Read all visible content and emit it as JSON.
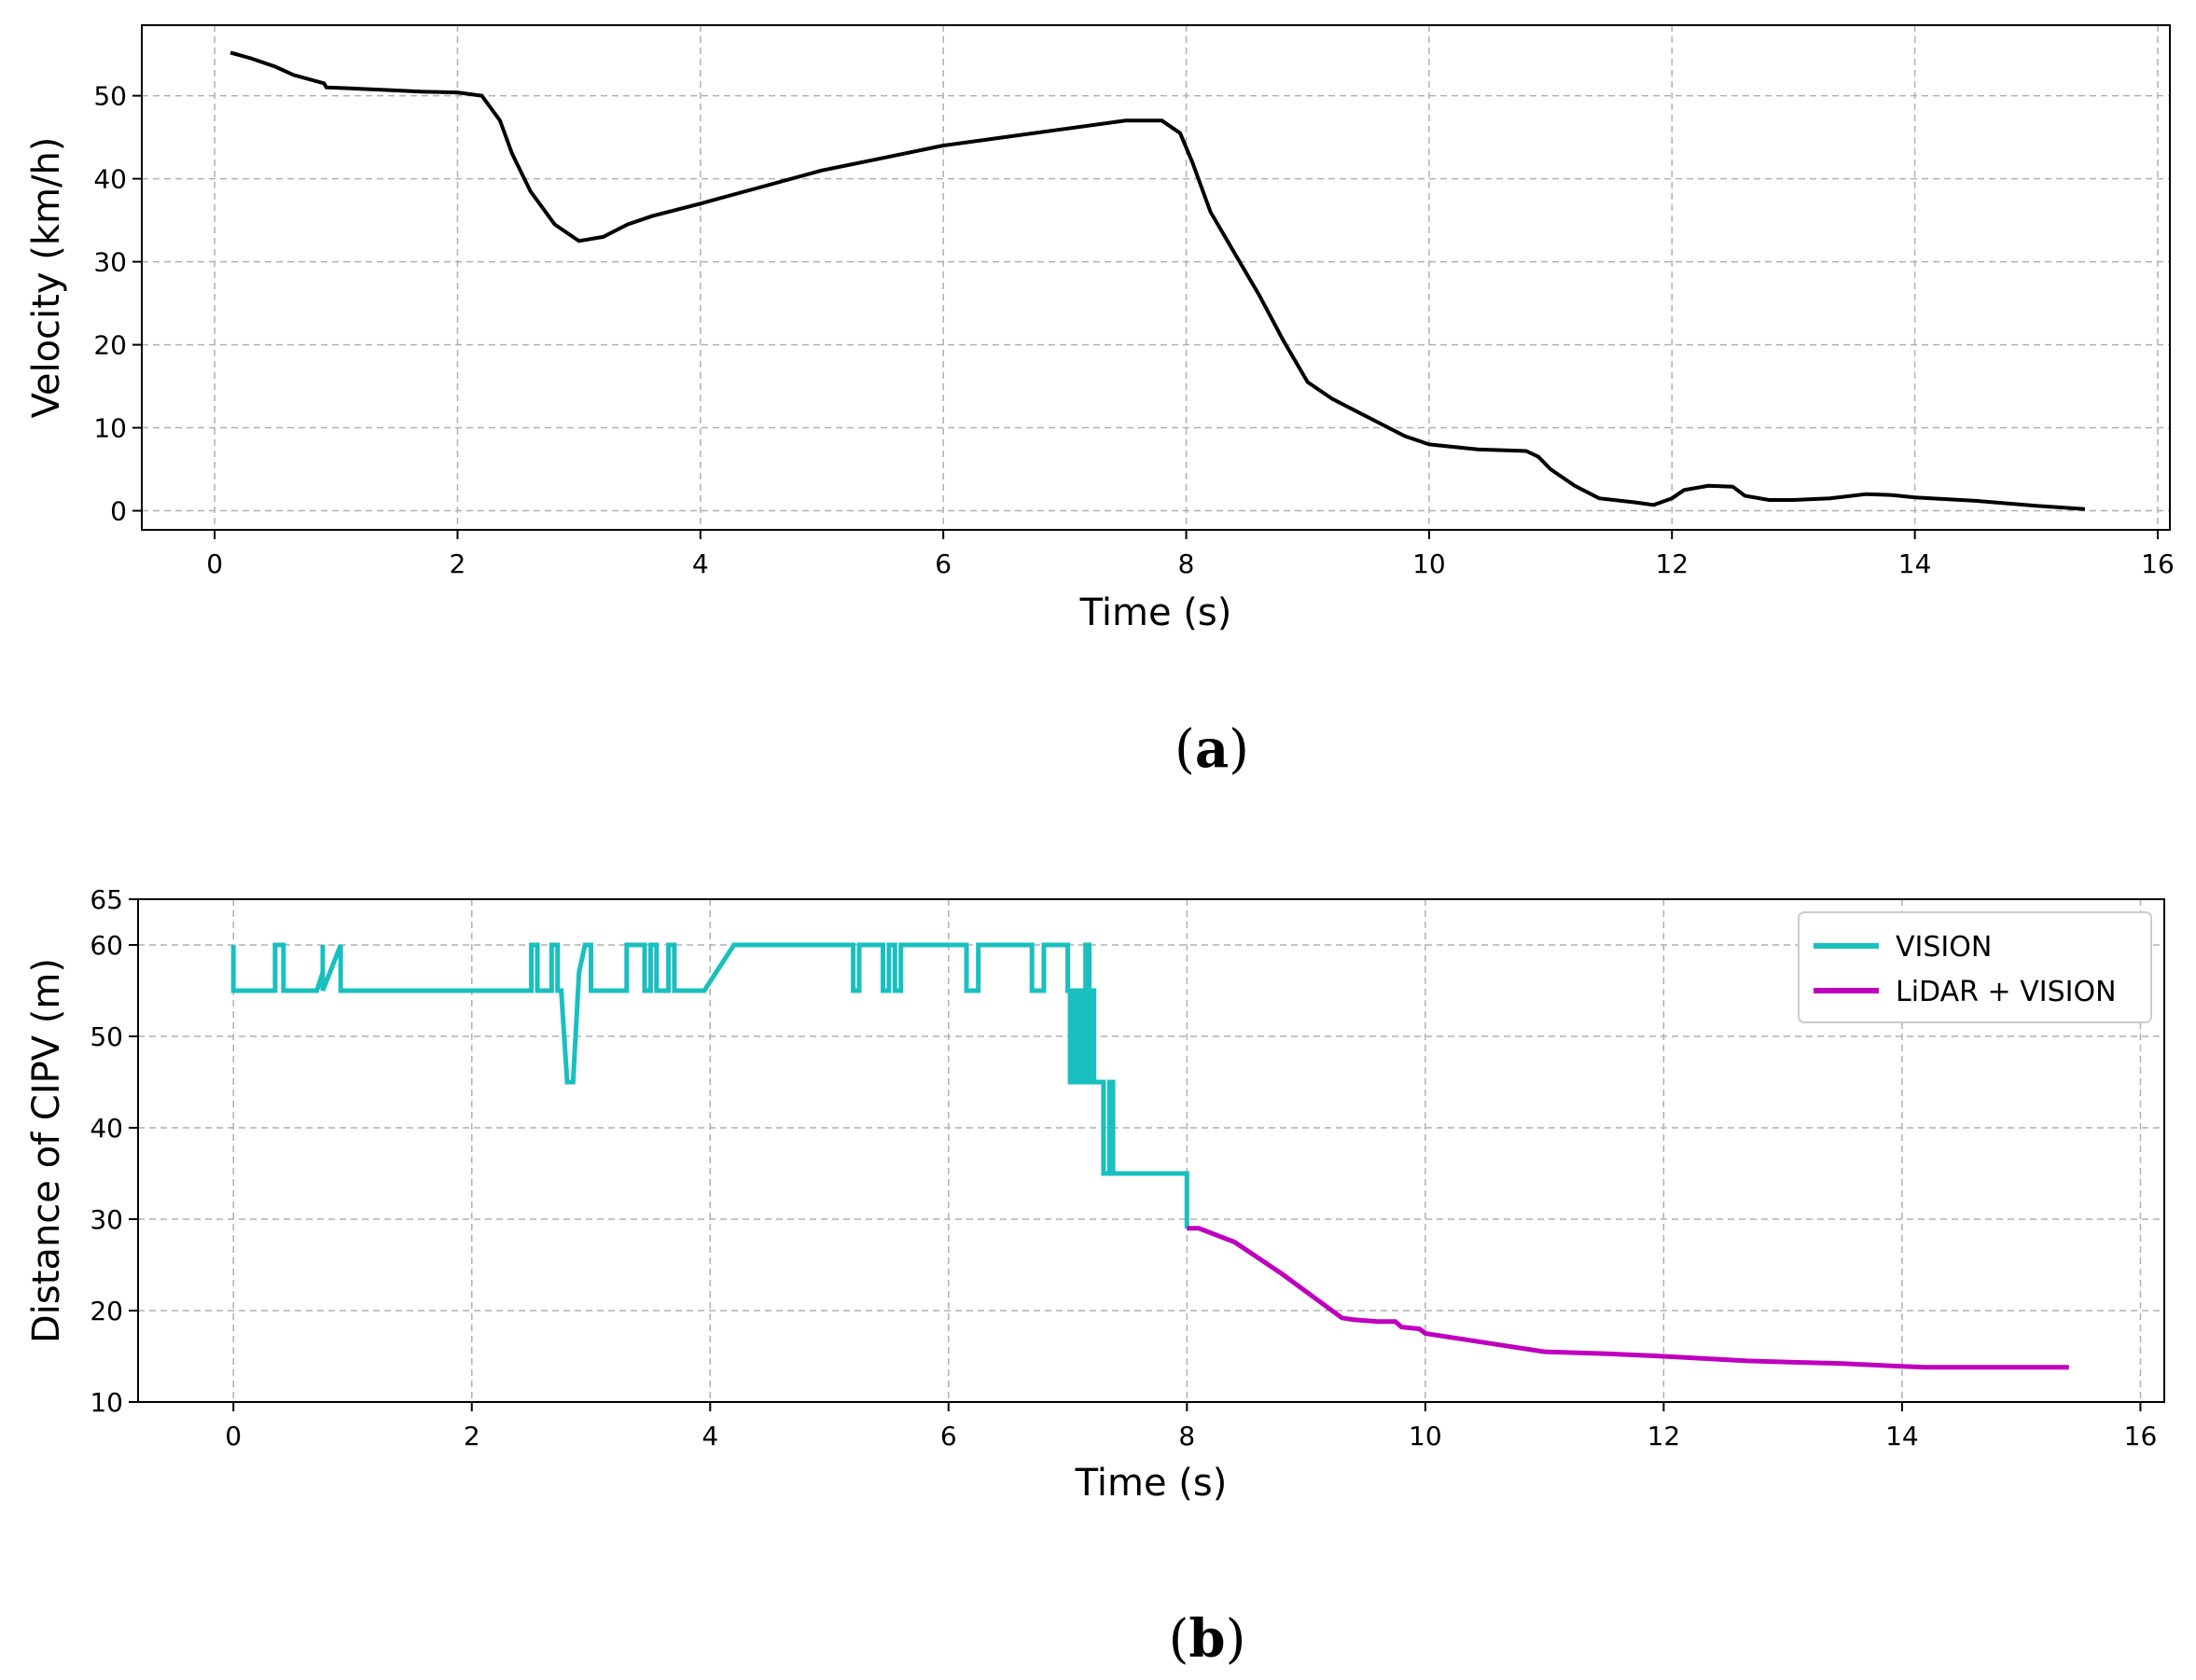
{
  "colors": {
    "velocity": "#000000",
    "vision": "#1ABFBF",
    "lidar_vision": "#BF00BF",
    "grid": "#b0b0b0"
  },
  "chart_data": [
    {
      "type": "line",
      "panel": "a",
      "caption_letter": "a",
      "title": "",
      "xlabel": "Time (s)",
      "ylabel": "Velocity (km/h)",
      "xlim": [
        -0.6,
        16.1
      ],
      "ylim": [
        -2.3,
        58.5
      ],
      "xticks": [
        0,
        2,
        4,
        6,
        8,
        10,
        12,
        14,
        16
      ],
      "yticks": [
        0,
        10,
        20,
        30,
        40,
        50
      ],
      "grid": true,
      "legend": null,
      "series": [
        {
          "name": "Velocity",
          "color": "#000000",
          "x": [
            0.13,
            0.3,
            0.5,
            0.65,
            0.9,
            0.92,
            1.1,
            1.4,
            1.7,
            2.0,
            2.2,
            2.35,
            2.45,
            2.6,
            2.8,
            3.0,
            3.2,
            3.4,
            3.6,
            4.0,
            4.5,
            5.0,
            5.5,
            6.0,
            6.5,
            7.0,
            7.5,
            7.8,
            7.95,
            8.05,
            8.2,
            8.4,
            8.6,
            8.8,
            9.0,
            9.2,
            9.4,
            9.6,
            9.8,
            10.0,
            10.4,
            10.8,
            10.9,
            11.0,
            11.2,
            11.4,
            11.7,
            11.85,
            12.0,
            12.1,
            12.3,
            12.5,
            12.6,
            12.8,
            13.0,
            13.3,
            13.6,
            13.8,
            14.0,
            14.5,
            15.0,
            15.4
          ],
          "y": [
            55.2,
            54.5,
            53.5,
            52.5,
            51.5,
            51.0,
            50.9,
            50.7,
            50.5,
            50.4,
            50.0,
            47.0,
            43.0,
            38.5,
            34.5,
            32.5,
            33.0,
            34.5,
            35.5,
            37.0,
            39.0,
            41.0,
            42.5,
            44.0,
            45.0,
            46.0,
            47.0,
            47.0,
            45.5,
            42.0,
            36.0,
            31.0,
            26.0,
            20.5,
            15.5,
            13.5,
            12.0,
            10.5,
            9.0,
            8.0,
            7.4,
            7.2,
            6.5,
            5.0,
            3.0,
            1.5,
            1.0,
            0.7,
            1.5,
            2.5,
            3.0,
            2.9,
            1.8,
            1.3,
            1.3,
            1.5,
            2.0,
            1.9,
            1.6,
            1.2,
            0.6,
            0.2
          ]
        }
      ]
    },
    {
      "type": "line",
      "panel": "b",
      "caption_letter": "b",
      "title": "",
      "xlabel": "Time (s)",
      "ylabel": "Distance of CIPV (m)",
      "xlim": [
        -0.8,
        16.2
      ],
      "ylim": [
        10,
        65
      ],
      "xticks": [
        0,
        2,
        4,
        6,
        8,
        10,
        12,
        14,
        16
      ],
      "yticks": [
        10,
        20,
        30,
        40,
        50,
        60,
        65
      ],
      "grid": true,
      "legend": "top-right",
      "series": [
        {
          "name": "VISION",
          "color": "#1ABFBF",
          "x": [
            0.0,
            0.0,
            0.0,
            0.35,
            0.35,
            0.42,
            0.42,
            0.7,
            0.75,
            0.75,
            0.75,
            0.9,
            0.9,
            2.5,
            2.5,
            2.55,
            2.55,
            2.67,
            2.67,
            2.72,
            2.72,
            2.75,
            2.8,
            2.85,
            2.9,
            2.95,
            3.0,
            3.0,
            3.3,
            3.3,
            3.45,
            3.45,
            3.5,
            3.5,
            3.55,
            3.55,
            3.65,
            3.65,
            3.7,
            3.7,
            3.75,
            3.75,
            3.95,
            4.2,
            5.2,
            5.2,
            5.25,
            5.25,
            5.45,
            5.45,
            5.5,
            5.5,
            5.55,
            5.55,
            5.6,
            5.6,
            6.15,
            6.15,
            6.25,
            6.25,
            6.7,
            6.7,
            6.8,
            6.8,
            7.0,
            7.0,
            7.02,
            7.02,
            7.05,
            7.05,
            7.08,
            7.08,
            7.1,
            7.1,
            7.12,
            7.12,
            7.15,
            7.15,
            7.18,
            7.18,
            7.2,
            7.2,
            7.22,
            7.22,
            7.3,
            7.3,
            7.35,
            7.35,
            7.38,
            7.38,
            7.4,
            7.4,
            8.0,
            8.0
          ],
          "y": [
            60,
            55,
            55,
            55,
            60,
            60,
            55,
            55,
            57,
            60,
            55,
            60,
            55,
            55,
            60,
            60,
            55,
            55,
            60,
            60,
            55,
            55,
            45,
            45,
            57,
            60,
            60,
            55,
            55,
            60,
            60,
            55,
            55,
            60,
            60,
            55,
            55,
            60,
            60,
            55,
            55,
            55,
            55,
            60,
            60,
            55,
            55,
            60,
            60,
            55,
            55,
            60,
            60,
            55,
            55,
            60,
            60,
            55,
            55,
            60,
            60,
            55,
            55,
            60,
            60,
            55,
            55,
            45,
            45,
            55,
            55,
            45,
            45,
            55,
            55,
            45,
            45,
            60,
            60,
            45,
            45,
            55,
            55,
            45,
            45,
            35,
            35,
            45,
            45,
            35,
            35,
            35,
            35,
            29
          ]
        },
        {
          "name": "LiDAR + VISION",
          "color": "#BF00BF",
          "x": [
            8.0,
            8.1,
            8.4,
            8.8,
            9.3,
            9.4,
            9.6,
            9.75,
            9.8,
            9.95,
            10.0,
            10.5,
            11.0,
            11.5,
            12.0,
            12.7,
            13.5,
            14.0,
            14.2,
            15.0,
            15.4
          ],
          "y": [
            29,
            29,
            27.5,
            24,
            19.2,
            19,
            18.8,
            18.8,
            18.2,
            18.0,
            17.5,
            16.5,
            15.5,
            15.3,
            15.0,
            14.5,
            14.2,
            13.9,
            13.8,
            13.8,
            13.8
          ]
        }
      ]
    }
  ]
}
